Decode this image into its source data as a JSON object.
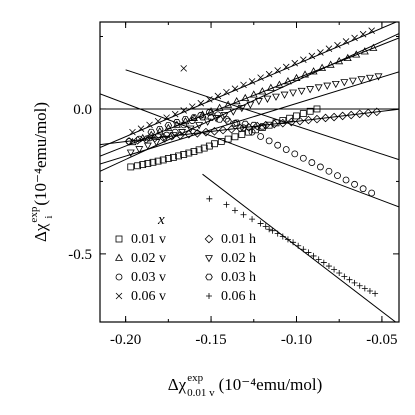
{
  "chart_data": {
    "type": "scatter",
    "xlabel": {
      "main": "Δχ",
      "sup": "exp",
      "sub": "0.01 v",
      "unit": "(10⁻⁴emu/mol)"
    },
    "ylabel": {
      "main": "Δχ",
      "sup": "exp",
      "sub": "i",
      "unit": "(10⁻⁴emu/mol)"
    },
    "xlim": [
      -0.215,
      -0.04
    ],
    "ylim": [
      -0.735,
      0.3
    ],
    "xticks": [
      -0.2,
      -0.15,
      -0.1,
      -0.05
    ],
    "xticklabels": [
      "-0.20",
      "-0.15",
      "-0.10",
      "-0.05"
    ],
    "yticks": [
      0.0,
      -0.5
    ],
    "yticklabels": [
      "0.0",
      "-0.5"
    ],
    "legend_title": "x",
    "legend_position": "lower-left",
    "series": [
      {
        "name": "0.01 v",
        "marker": "square",
        "points": [
          [
            -0.197,
            -0.2
          ],
          [
            -0.193,
            -0.196
          ],
          [
            -0.19,
            -0.192
          ],
          [
            -0.187,
            -0.188
          ],
          [
            -0.184,
            -0.184
          ],
          [
            -0.181,
            -0.18
          ],
          [
            -0.178,
            -0.176
          ],
          [
            -0.175,
            -0.171
          ],
          [
            -0.172,
            -0.167
          ],
          [
            -0.169,
            -0.162
          ],
          [
            -0.166,
            -0.157
          ],
          [
            -0.163,
            -0.152
          ],
          [
            -0.16,
            -0.147
          ],
          [
            -0.157,
            -0.141
          ],
          [
            -0.154,
            -0.135
          ],
          [
            -0.151,
            -0.128
          ],
          [
            -0.148,
            -0.12
          ],
          [
            -0.144,
            -0.112
          ],
          [
            -0.14,
            -0.104
          ],
          [
            -0.136,
            -0.096
          ],
          [
            -0.132,
            -0.088
          ],
          [
            -0.128,
            -0.08
          ],
          [
            -0.124,
            -0.072
          ],
          [
            -0.12,
            -0.064
          ],
          [
            -0.116,
            -0.056
          ],
          [
            -0.112,
            -0.048
          ],
          [
            -0.108,
            -0.04
          ],
          [
            -0.104,
            -0.032
          ],
          [
            -0.1,
            -0.024
          ],
          [
            -0.096,
            -0.016
          ],
          [
            -0.092,
            -0.008
          ],
          [
            -0.088,
            0.0
          ]
        ]
      },
      {
        "name": "0.02 v",
        "marker": "triangle-up",
        "points": [
          [
            -0.196,
            -0.115
          ],
          [
            -0.19,
            -0.101
          ],
          [
            -0.185,
            -0.09
          ],
          [
            -0.18,
            -0.078
          ],
          [
            -0.175,
            -0.066
          ],
          [
            -0.17,
            -0.055
          ],
          [
            -0.165,
            -0.043
          ],
          [
            -0.16,
            -0.032
          ],
          [
            -0.155,
            -0.02
          ],
          [
            -0.15,
            -0.009
          ],
          [
            -0.145,
            0.003
          ],
          [
            -0.14,
            0.014
          ],
          [
            -0.135,
            0.026
          ],
          [
            -0.13,
            0.037
          ],
          [
            -0.125,
            0.049
          ],
          [
            -0.12,
            0.06
          ],
          [
            -0.115,
            0.072
          ],
          [
            -0.11,
            0.083
          ],
          [
            -0.105,
            0.095
          ],
          [
            -0.1,
            0.106
          ],
          [
            -0.095,
            0.118
          ],
          [
            -0.09,
            0.129
          ],
          [
            -0.085,
            0.141
          ],
          [
            -0.08,
            0.152
          ],
          [
            -0.075,
            0.164
          ],
          [
            -0.07,
            0.175
          ],
          [
            -0.065,
            0.187
          ],
          [
            -0.06,
            0.198
          ],
          [
            -0.055,
            0.21
          ]
        ]
      },
      {
        "name": "0.03 v",
        "marker": "circle",
        "points": [
          [
            -0.198,
            -0.112
          ],
          [
            -0.192,
            -0.104
          ],
          [
            -0.186,
            -0.1
          ],
          [
            -0.181,
            -0.095
          ],
          [
            -0.176,
            -0.09
          ],
          [
            -0.171,
            -0.08
          ],
          [
            -0.166,
            -0.055
          ],
          [
            -0.161,
            -0.04
          ],
          [
            -0.156,
            -0.022
          ],
          [
            -0.151,
            -0.012
          ],
          [
            -0.146,
            -0.02
          ],
          [
            -0.141,
            -0.035
          ],
          [
            -0.136,
            -0.05
          ],
          [
            -0.131,
            -0.065
          ],
          [
            -0.126,
            -0.08
          ],
          [
            -0.121,
            -0.095
          ],
          [
            -0.116,
            -0.11
          ],
          [
            -0.111,
            -0.125
          ],
          [
            -0.106,
            -0.14
          ],
          [
            -0.101,
            -0.155
          ],
          [
            -0.096,
            -0.17
          ],
          [
            -0.091,
            -0.185
          ],
          [
            -0.086,
            -0.2
          ],
          [
            -0.081,
            -0.215
          ],
          [
            -0.076,
            -0.23
          ],
          [
            -0.071,
            -0.245
          ],
          [
            -0.066,
            -0.26
          ],
          [
            -0.061,
            -0.275
          ],
          [
            -0.056,
            -0.29
          ]
        ]
      },
      {
        "name": "0.06 v",
        "marker": "cross",
        "points": [
          [
            -0.196,
            -0.08
          ],
          [
            -0.191,
            -0.068
          ],
          [
            -0.186,
            -0.055
          ],
          [
            -0.181,
            -0.042
          ],
          [
            -0.176,
            -0.03
          ],
          [
            -0.171,
            -0.018
          ],
          [
            -0.166,
            -0.005
          ],
          [
            -0.161,
            0.008
          ],
          [
            -0.156,
            0.02
          ],
          [
            -0.151,
            0.033
          ],
          [
            -0.146,
            0.045
          ],
          [
            -0.141,
            0.058
          ],
          [
            -0.136,
            0.07
          ],
          [
            -0.131,
            0.083
          ],
          [
            -0.126,
            0.095
          ],
          [
            -0.121,
            0.108
          ],
          [
            -0.116,
            0.12
          ],
          [
            -0.111,
            0.133
          ],
          [
            -0.106,
            0.145
          ],
          [
            -0.101,
            0.158
          ],
          [
            -0.096,
            0.17
          ],
          [
            -0.091,
            0.183
          ],
          [
            -0.086,
            0.195
          ],
          [
            -0.081,
            0.208
          ],
          [
            -0.076,
            0.22
          ],
          [
            -0.071,
            0.233
          ],
          [
            -0.066,
            0.245
          ],
          [
            -0.061,
            0.258
          ],
          [
            -0.056,
            0.27
          ],
          [
            -0.166,
            0.14
          ]
        ]
      },
      {
        "name": "0.01 h",
        "marker": "diamond",
        "points": [
          [
            -0.198,
            -0.112
          ],
          [
            -0.193,
            -0.108
          ],
          [
            -0.188,
            -0.105
          ],
          [
            -0.183,
            -0.101
          ],
          [
            -0.178,
            -0.098
          ],
          [
            -0.173,
            -0.094
          ],
          [
            -0.168,
            -0.091
          ],
          [
            -0.163,
            -0.087
          ],
          [
            -0.158,
            -0.084
          ],
          [
            -0.153,
            -0.08
          ],
          [
            -0.148,
            -0.077
          ],
          [
            -0.143,
            -0.073
          ],
          [
            -0.138,
            -0.07
          ],
          [
            -0.133,
            -0.066
          ],
          [
            -0.128,
            -0.063
          ],
          [
            -0.123,
            -0.059
          ],
          [
            -0.118,
            -0.056
          ],
          [
            -0.113,
            -0.052
          ],
          [
            -0.108,
            -0.049
          ],
          [
            -0.103,
            -0.045
          ],
          [
            -0.098,
            -0.042
          ],
          [
            -0.093,
            -0.038
          ],
          [
            -0.088,
            -0.035
          ],
          [
            -0.083,
            -0.031
          ],
          [
            -0.078,
            -0.028
          ],
          [
            -0.073,
            -0.024
          ],
          [
            -0.068,
            -0.021
          ],
          [
            -0.063,
            -0.017
          ],
          [
            -0.058,
            -0.014
          ],
          [
            -0.053,
            -0.01
          ]
        ]
      },
      {
        "name": "0.02 h",
        "marker": "triangle-down",
        "points": [
          [
            -0.197,
            -0.15
          ],
          [
            -0.192,
            -0.138
          ],
          [
            -0.187,
            -0.126
          ],
          [
            -0.182,
            -0.114
          ],
          [
            -0.177,
            -0.102
          ],
          [
            -0.172,
            -0.09
          ],
          [
            -0.167,
            -0.079
          ],
          [
            -0.162,
            -0.067
          ],
          [
            -0.157,
            -0.055
          ],
          [
            -0.152,
            -0.043
          ],
          [
            -0.147,
            -0.031
          ],
          [
            -0.142,
            -0.02
          ],
          [
            -0.137,
            -0.008
          ],
          [
            -0.132,
            0.004
          ],
          [
            -0.127,
            0.016
          ],
          [
            -0.122,
            0.028
          ],
          [
            -0.117,
            0.036
          ],
          [
            -0.112,
            0.043
          ],
          [
            -0.107,
            0.05
          ],
          [
            -0.102,
            0.057
          ],
          [
            -0.097,
            0.063
          ],
          [
            -0.092,
            0.069
          ],
          [
            -0.087,
            0.075
          ],
          [
            -0.082,
            0.081
          ],
          [
            -0.077,
            0.087
          ],
          [
            -0.072,
            0.093
          ],
          [
            -0.067,
            0.098
          ],
          [
            -0.062,
            0.103
          ],
          [
            -0.057,
            0.108
          ],
          [
            -0.052,
            0.113
          ]
        ]
      },
      {
        "name": "0.03 h",
        "marker": "hexagon",
        "points": [
          [
            -0.185,
            -0.08
          ],
          [
            -0.18,
            -0.07
          ],
          [
            -0.175,
            -0.057
          ],
          [
            -0.17,
            -0.046
          ],
          [
            -0.165,
            -0.036
          ],
          [
            -0.16,
            -0.03
          ],
          [
            -0.155,
            -0.028
          ],
          [
            -0.15,
            -0.03
          ],
          [
            -0.145,
            -0.036
          ],
          [
            -0.14,
            -0.042
          ],
          [
            -0.135,
            -0.048
          ],
          [
            -0.13,
            -0.052
          ],
          [
            -0.125,
            -0.056
          ],
          [
            -0.12,
            -0.06
          ]
        ]
      },
      {
        "name": "0.06 h",
        "marker": "plus",
        "points": [
          [
            -0.151,
            -0.31
          ],
          [
            -0.141,
            -0.33
          ],
          [
            -0.136,
            -0.35
          ],
          [
            -0.131,
            -0.365
          ],
          [
            -0.126,
            -0.38
          ],
          [
            -0.121,
            -0.395
          ],
          [
            -0.118,
            -0.405
          ],
          [
            -0.116,
            -0.415
          ],
          [
            -0.114,
            -0.42
          ],
          [
            -0.111,
            -0.43
          ],
          [
            -0.108,
            -0.44
          ],
          [
            -0.105,
            -0.45
          ],
          [
            -0.102,
            -0.46
          ],
          [
            -0.099,
            -0.472
          ],
          [
            -0.096,
            -0.484
          ],
          [
            -0.093,
            -0.495
          ],
          [
            -0.09,
            -0.507
          ],
          [
            -0.087,
            -0.519
          ],
          [
            -0.084,
            -0.53
          ],
          [
            -0.081,
            -0.542
          ],
          [
            -0.078,
            -0.554
          ],
          [
            -0.075,
            -0.566
          ],
          [
            -0.072,
            -0.578
          ],
          [
            -0.069,
            -0.589
          ],
          [
            -0.066,
            -0.6
          ],
          [
            -0.063,
            -0.61
          ],
          [
            -0.06,
            -0.619
          ],
          [
            -0.057,
            -0.628
          ],
          [
            -0.054,
            -0.637
          ]
        ]
      }
    ],
    "fit_lines": [
      {
        "series": "0.01 v",
        "from": [
          -0.215,
          -0.215
        ],
        "to": [
          -0.04,
          0.26
        ]
      },
      {
        "series": "0.02 v",
        "from": [
          -0.215,
          -0.163
        ],
        "to": [
          -0.04,
          0.245
        ]
      },
      {
        "series": "0.03 v",
        "from": [
          -0.215,
          0.052
        ],
        "to": [
          -0.04,
          -0.338
        ]
      },
      {
        "series": "0.06 v",
        "from": [
          -0.215,
          -0.133
        ],
        "to": [
          -0.04,
          0.304
        ]
      },
      {
        "series": "0.01 h",
        "from": [
          -0.215,
          -0.123
        ],
        "to": [
          -0.04,
          -0.001
        ]
      },
      {
        "series": "0.02 h",
        "from": [
          -0.215,
          -0.19
        ],
        "to": [
          -0.04,
          0.128
        ]
      },
      {
        "series": "0.03 h",
        "from": [
          -0.2,
          0.135
        ],
        "to": [
          -0.04,
          -0.175
        ]
      },
      {
        "series": "0.06 h",
        "from": [
          -0.155,
          -0.225
        ],
        "to": [
          -0.042,
          -0.735
        ]
      },
      {
        "series": "zero",
        "from": [
          -0.215,
          0.0
        ],
        "to": [
          -0.04,
          0.0
        ]
      }
    ]
  }
}
